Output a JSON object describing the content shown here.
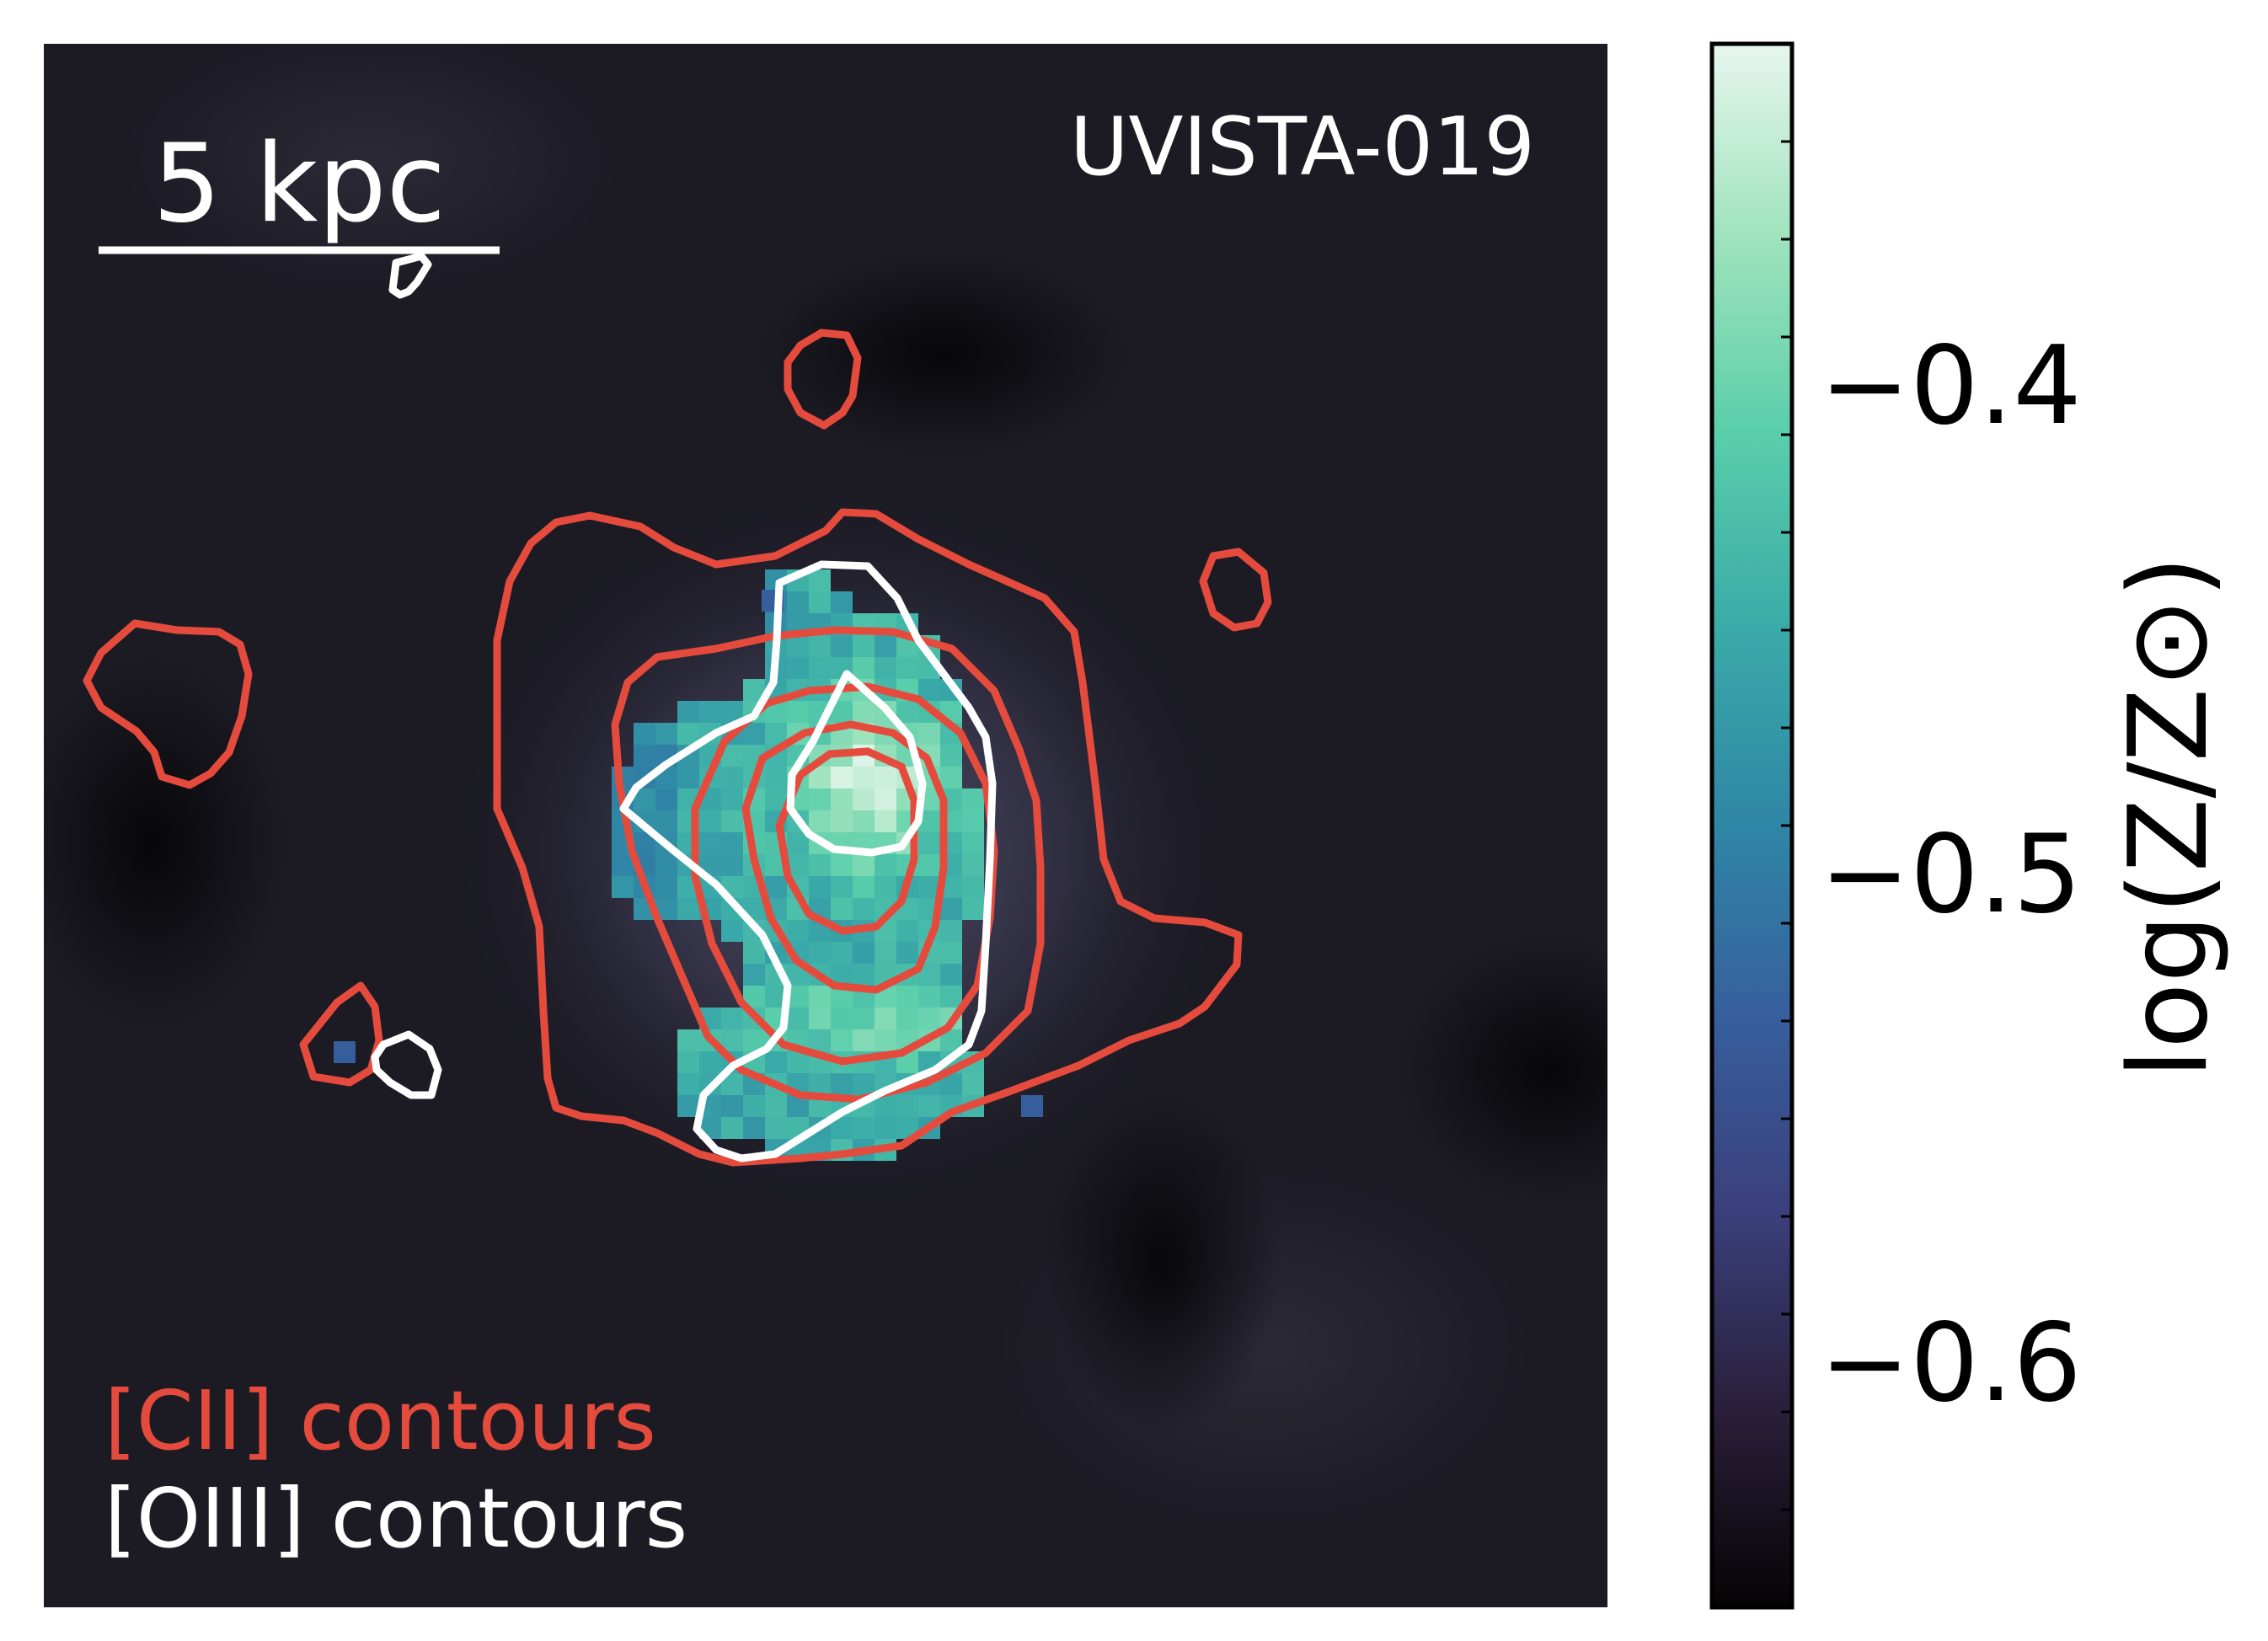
{
  "chart_data": {
    "type": "heatmap",
    "title": "UVISTA-019",
    "scalebar_label": "5 kpc",
    "legend": {
      "cii": "[CII] contours",
      "oiii": "[OIII] contours"
    },
    "colorbar": {
      "label": "log(Z/Z⊙)",
      "range": [
        -0.65,
        -0.33
      ],
      "major_ticks": [
        -0.6,
        -0.5,
        -0.4
      ],
      "tick_labels": [
        "−0.6",
        "−0.5",
        "−0.4"
      ],
      "minor_step": 0.02,
      "colormap": [
        "#060304",
        "#2a1f3a",
        "#3a3f7a",
        "#375e9c",
        "#2f86a6",
        "#3aaaa8",
        "#59ceaa",
        "#9fe3bd",
        "#e6f6ee"
      ]
    },
    "colors": {
      "cii": "#e54b3d",
      "oiii": "#ffffff",
      "background": "#1c1b24",
      "emission": "#4d4a66"
    }
  }
}
